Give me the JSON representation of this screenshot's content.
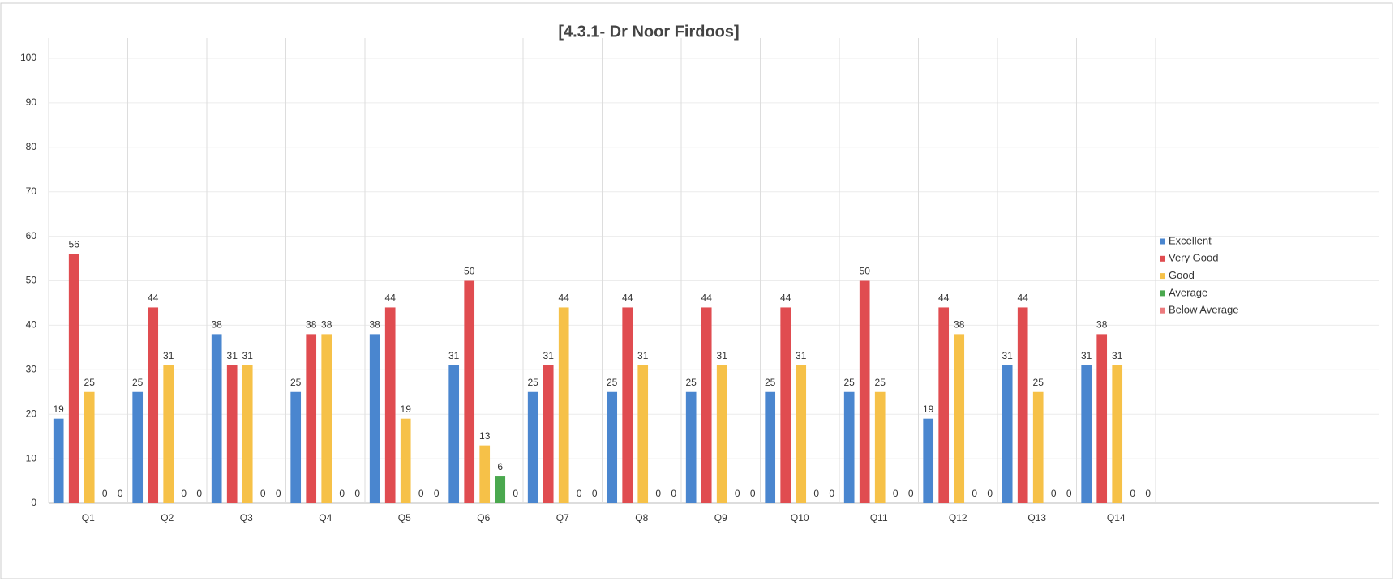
{
  "chart_data": {
    "type": "bar",
    "title": "[4.3.1- Dr Noor Firdoos]",
    "categories": [
      "Q1",
      "Q2",
      "Q3",
      "Q4",
      "Q5",
      "Q6",
      "Q7",
      "Q8",
      "Q9",
      "Q10",
      "Q11",
      "Q12",
      "Q13",
      "Q14"
    ],
    "series": [
      {
        "name": "Excellent",
        "color": "#4a86cf",
        "values": [
          19,
          25,
          38,
          25,
          38,
          31,
          25,
          25,
          25,
          25,
          25,
          19,
          31,
          31
        ]
      },
      {
        "name": "Very Good",
        "color": "#e04c50",
        "values": [
          56,
          44,
          31,
          38,
          44,
          50,
          31,
          44,
          44,
          44,
          50,
          44,
          44,
          38
        ]
      },
      {
        "name": "Good",
        "color": "#f6c148",
        "values": [
          25,
          31,
          31,
          38,
          19,
          13,
          44,
          31,
          31,
          31,
          25,
          38,
          25,
          31
        ]
      },
      {
        "name": "Average",
        "color": "#4aa84e",
        "values": [
          0,
          0,
          0,
          0,
          0,
          6,
          0,
          0,
          0,
          0,
          0,
          0,
          0,
          0
        ]
      },
      {
        "name": "Below Average",
        "color": "#ec7b7e",
        "values": [
          0,
          0,
          0,
          0,
          0,
          0,
          0,
          0,
          0,
          0,
          0,
          0,
          0,
          0
        ]
      }
    ],
    "ylim": [
      0,
      100
    ],
    "yticks": [
      0,
      10,
      20,
      30,
      40,
      50,
      60,
      70,
      80,
      90,
      100
    ],
    "grid": true,
    "legend": "right"
  }
}
